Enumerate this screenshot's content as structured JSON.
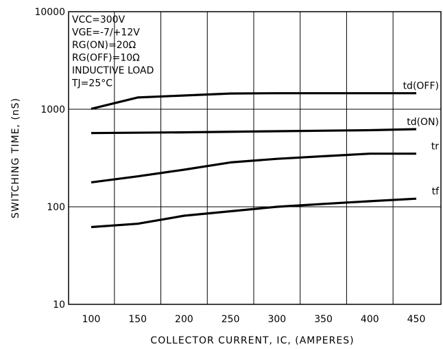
{
  "chart_data": {
    "type": "line",
    "xlabel": "COLLECTOR CURRENT, IC, (AMPERES)",
    "ylabel": "SWITCHING TIME, (nS)",
    "xlim": [
      75,
      450
    ],
    "ylim": [
      10,
      10000
    ],
    "yscale": "log",
    "x_ticks": [
      "100",
      "150",
      "200",
      "250",
      "300",
      "350",
      "400",
      "450"
    ],
    "x_tick_values": [
      100,
      150,
      200,
      250,
      300,
      350,
      400,
      450
    ],
    "y_ticks": [
      "10",
      "100",
      "1000",
      "10000"
    ],
    "y_tick_values": [
      10,
      100,
      1000,
      10000
    ],
    "grid": true,
    "annotations": [
      "VCC=300V",
      "VGE=-7/+12V",
      "RG(ON)=20Ω",
      "RG(OFF)=10Ω",
      "INDUCTIVE LOAD",
      "TJ=25°C"
    ],
    "series": [
      {
        "name": "td(OFF)",
        "x": [
          100,
          150,
          250,
          300,
          400,
          450
        ],
        "y": [
          1010,
          1320,
          1450,
          1460,
          1460,
          1460
        ]
      },
      {
        "name": "td(ON)",
        "x": [
          100,
          200,
          300,
          400,
          450
        ],
        "y": [
          570,
          580,
          595,
          610,
          625
        ]
      },
      {
        "name": "tr",
        "x": [
          100,
          150,
          200,
          250,
          300,
          350,
          400,
          450
        ],
        "y": [
          178,
          205,
          240,
          285,
          310,
          330,
          350,
          350
        ]
      },
      {
        "name": "tf",
        "x": [
          100,
          150,
          200,
          250,
          300,
          350,
          400,
          450
        ],
        "y": [
          62,
          67,
          81,
          90,
          100,
          107,
          114,
          121
        ]
      }
    ]
  }
}
